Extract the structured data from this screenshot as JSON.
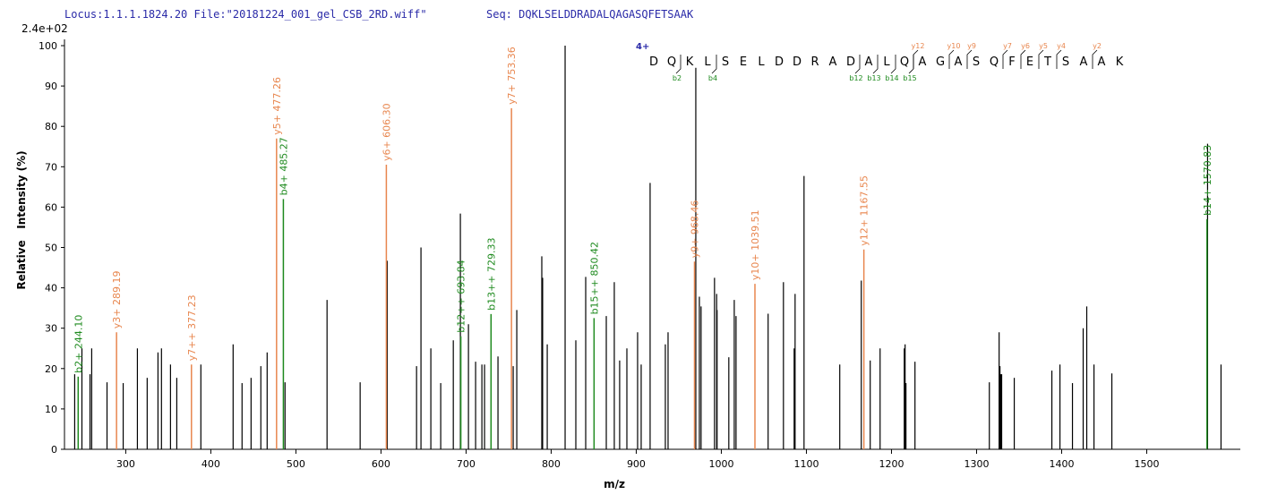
{
  "chart_data": {
    "type": "spectrum",
    "header_locus": "Locus:1.1.1.1824.20 File:\"20181224_001_gel_CSB_2RD.wiff\"",
    "header_seq": "Seq: DQKLSELDDRADALQAGASQFETSAAK",
    "intensity_scale": "2.4e+02",
    "x_label": "m/z",
    "y_label": "Relative   Intensity (%)",
    "xlim": [
      228,
      1610
    ],
    "ylim": [
      0,
      100
    ],
    "xticks": [
      300,
      400,
      500,
      600,
      700,
      800,
      900,
      1000,
      1100,
      1200,
      1300,
      1400,
      1500
    ],
    "yticks": [
      0,
      10,
      20,
      30,
      40,
      50,
      60,
      70,
      80,
      90,
      100
    ],
    "sequence_annotation": {
      "charge": "4+",
      "residues": [
        "D",
        "Q",
        "K",
        "L",
        "S",
        "E",
        "L",
        "D",
        "D",
        "R",
        "A",
        "D",
        "A",
        "L",
        "Q",
        "A",
        "G",
        "A",
        "S",
        "Q",
        "F",
        "E",
        "T",
        "S",
        "A",
        "A",
        "K"
      ],
      "b_ions": [
        "b2",
        "b4",
        "b12",
        "b13",
        "b14",
        "b15"
      ],
      "y_ions": [
        "y12",
        "y10",
        "y9",
        "y7",
        "y6",
        "y5",
        "y4",
        "y2"
      ],
      "b_color": "#1e8a1e",
      "y_color": "#e8864e",
      "charge_color": "#2a2aa8"
    },
    "series": [
      {
        "color": "#000000",
        "x": [
          240.0,
          248.5,
          258,
          260,
          278,
          297,
          313.7,
          325.2,
          337.9,
          342,
          352.6,
          360,
          388.3,
          426.2,
          436.7,
          447.3,
          458.8,
          466.2,
          487.2,
          536.6,
          575.5,
          607.3,
          641.8,
          647,
          658.6,
          670.2,
          685,
          693.3,
          702.8,
          711.2,
          718.6,
          721.7,
          737.5,
          755.4,
          759.6,
          789,
          790,
          795.4,
          816.4,
          829,
          840.6,
          864.8,
          874.2,
          880.5,
          889,
          901.6,
          905.8,
          916.3,
          934.2,
          937.4,
          970,
          974.2,
          976.2,
          992,
          994.5,
          995,
          1008.8,
          1015.2,
          1017.3,
          1055,
          1073,
          1085.6,
          1086.7,
          1097.2,
          1139.2,
          1164.5,
          1175,
          1186.6,
          1215,
          1216,
          1217,
          1227.6,
          1315,
          1326.5,
          1327.5,
          1328.5,
          1329.5,
          1344.3,
          1388.5,
          1398,
          1412.7,
          1425.3,
          1429.5,
          1438,
          1459,
          1571.5,
          1587.3
        ],
        "values": [
          18.6,
          25,
          18.6,
          25,
          16.6,
          16.4,
          25,
          17.7,
          24,
          25,
          21,
          17.7,
          21,
          26,
          16.4,
          17.7,
          20.6,
          24,
          16.6,
          37,
          16.6,
          46.7,
          20.6,
          50,
          25,
          16.4,
          27,
          58.4,
          31,
          21.7,
          21,
          21,
          23,
          20.6,
          34.5,
          47.8,
          42.5,
          26,
          100,
          27,
          42.7,
          33,
          41.4,
          22,
          25,
          29,
          21,
          66,
          26,
          29,
          94.5,
          37.8,
          35.4,
          42.5,
          38.5,
          34.5,
          22.8,
          37,
          33,
          33.6,
          41.4,
          25,
          38.5,
          67.7,
          21,
          41.8,
          22,
          25,
          25,
          26,
          16.4,
          21.7,
          16.6,
          29,
          20.6,
          18.6,
          18.6,
          17.7,
          19.5,
          21,
          16.4,
          30,
          35.4,
          21,
          18.8,
          75.7,
          21
        ]
      },
      {
        "color": "#1e8a1e",
        "x": [
          244.1,
          485.27,
          693.84,
          729.33,
          850.42,
          1570.83
        ],
        "values": [
          18,
          62,
          28,
          33.5,
          32.5,
          57
        ],
        "peak_labels": [
          "b2+ 244.10",
          "b4+ 485.27",
          "b12++ 693.84",
          "b13++ 729.33",
          "b15++ 850.42",
          "b14+ 1570.83"
        ]
      },
      {
        "color": "#e8864e",
        "x": [
          289.19,
          377.23,
          477.26,
          606.3,
          753.36,
          968.46,
          1039.51,
          1167.55
        ],
        "values": [
          29,
          21,
          77,
          70.5,
          84.5,
          46.5,
          41,
          49.5
        ],
        "peak_labels": [
          "y3+ 289.19",
          "y7++ 377.23",
          "y5+ 477.26",
          "y6+ 606.30",
          "y7+ 753.36",
          "y9+ 968.46",
          "y10+ 1039.51",
          "y12+ 1167.55"
        ]
      }
    ]
  }
}
